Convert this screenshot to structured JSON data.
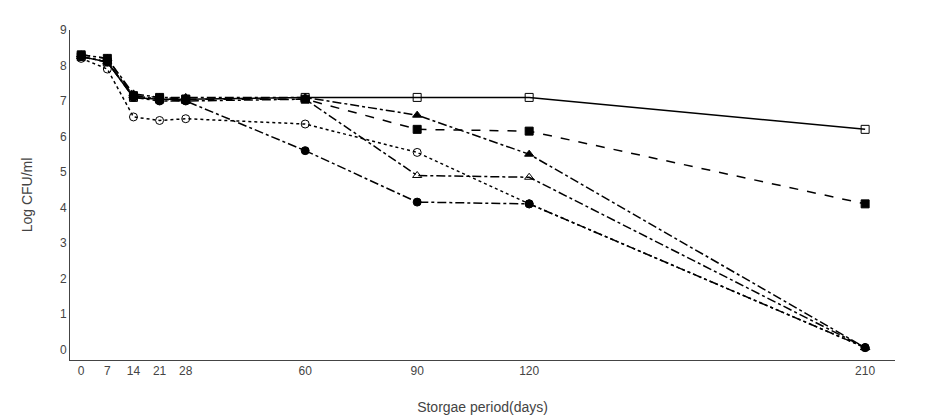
{
  "chart_data": {
    "type": "line",
    "xlabel": "Storgae period(days)",
    "ylabel": "Log CFU/ml",
    "x": [
      0,
      7,
      14,
      21,
      28,
      60,
      90,
      120,
      210
    ],
    "xlim": [
      -3,
      218
    ],
    "xticks": [
      0,
      7,
      14,
      21,
      28,
      60,
      90,
      120,
      210
    ],
    "ylim": [
      -0.3,
      9
    ],
    "yticks": [
      0,
      1,
      2,
      3,
      4,
      5,
      6,
      7,
      8,
      9
    ],
    "grid": false,
    "series": [
      {
        "color": "black",
        "marker": "square-open",
        "line_style": "solid",
        "values": [
          8.25,
          8.1,
          7.1,
          7.05,
          7.05,
          7.1,
          7.1,
          7.1,
          6.2
        ]
      },
      {
        "color": "black",
        "marker": "square",
        "line_style": "dash",
        "values": [
          8.3,
          8.2,
          7.15,
          7.1,
          7.05,
          7.05,
          6.2,
          6.15,
          4.1
        ]
      },
      {
        "color": "black",
        "marker": "circle-open",
        "line_style": "dot",
        "values": [
          8.2,
          7.9,
          6.55,
          6.45,
          6.5,
          6.35,
          5.55,
          4.1,
          0.05
        ]
      },
      {
        "color": "black",
        "marker": "triangle-up-open",
        "line_style": "dashdot",
        "values": [
          8.25,
          8.1,
          7.15,
          7.05,
          7.0,
          7.05,
          4.9,
          4.85,
          0.05
        ]
      },
      {
        "color": "black",
        "marker": "triangle-up",
        "line_style": "dashdot",
        "values": [
          8.3,
          8.2,
          7.2,
          7.1,
          7.1,
          7.1,
          6.6,
          5.5,
          0.05
        ]
      },
      {
        "color": "black",
        "marker": "circle",
        "line_style": "dashdot",
        "values": [
          8.25,
          8.1,
          7.1,
          7.0,
          7.0,
          5.6,
          4.15,
          4.1,
          0.05
        ]
      }
    ]
  }
}
